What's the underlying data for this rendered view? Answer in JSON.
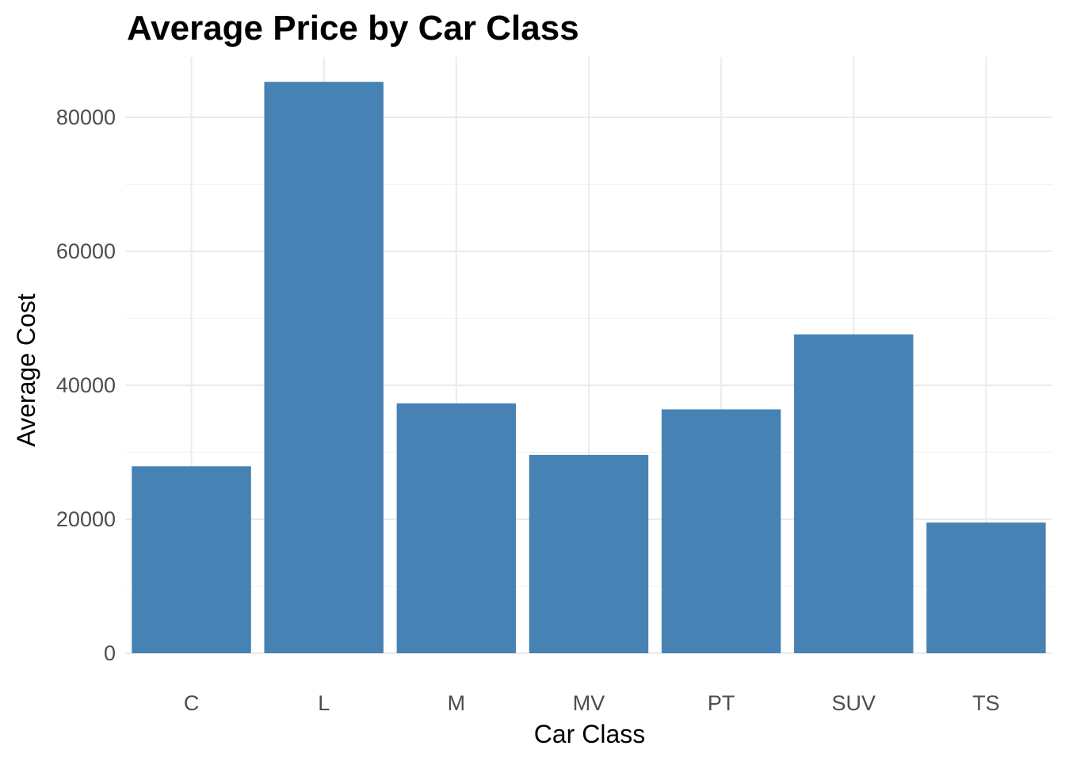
{
  "chart_data": {
    "type": "bar",
    "title": "Average Price by Car Class",
    "xlabel": "Car Class",
    "ylabel": "Average Cost",
    "categories": [
      "C",
      "L",
      "M",
      "MV",
      "PT",
      "SUV",
      "TS"
    ],
    "values": [
      27900,
      85300,
      37300,
      29600,
      36400,
      47600,
      19500
    ],
    "yticks": [
      0,
      20000,
      40000,
      60000,
      80000
    ],
    "ytick_labels": [
      "0",
      "20000",
      "40000",
      "60000",
      "80000"
    ],
    "ylim": [
      0,
      89000
    ],
    "grid": true,
    "legend": "none",
    "bar_color": "#4682B4",
    "grid_color": "#EBEBEB",
    "background": "#FFFFFF"
  }
}
